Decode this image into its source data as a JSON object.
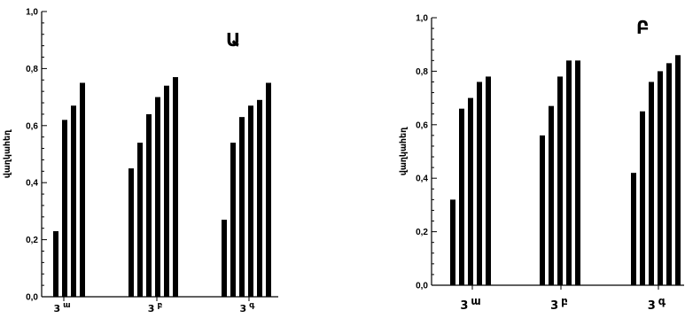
{
  "chart_data": [
    {
      "type": "bar",
      "panel_label": "Ա",
      "ylabel": "վաղկահեղ",
      "ylim": [
        0,
        1.0
      ],
      "yticks": [
        "0,0",
        "0,2",
        "0,4",
        "0,6",
        "0,8",
        "1,0"
      ],
      "categories": [
        {
          "base": "3",
          "sup": "ա"
        },
        {
          "base": "3",
          "sup": "բ"
        },
        {
          "base": "3",
          "sup": "գ"
        }
      ],
      "groups": [
        [
          0.23,
          0.62,
          0.67,
          0.75
        ],
        [
          0.45,
          0.54,
          0.64,
          0.7,
          0.74,
          0.77
        ],
        [
          0.27,
          0.54,
          0.63,
          0.67,
          0.69,
          0.75
        ]
      ]
    },
    {
      "type": "bar",
      "panel_label": "Բ",
      "ylabel": "վաղկահեղ",
      "ylim": [
        0,
        1.0
      ],
      "yticks": [
        "0,0",
        "0,2",
        "0,4",
        "0,6",
        "0,8",
        "1,0"
      ],
      "categories": [
        {
          "base": "3",
          "sup": "ա"
        },
        {
          "base": "3",
          "sup": "բ"
        },
        {
          "base": "3",
          "sup": "գ"
        }
      ],
      "groups": [
        [
          0.32,
          0.66,
          0.7,
          0.76,
          0.78
        ],
        [
          0.56,
          0.67,
          0.78,
          0.84,
          0.84
        ],
        [
          0.42,
          0.65,
          0.76,
          0.8,
          0.83,
          0.86
        ]
      ]
    }
  ]
}
